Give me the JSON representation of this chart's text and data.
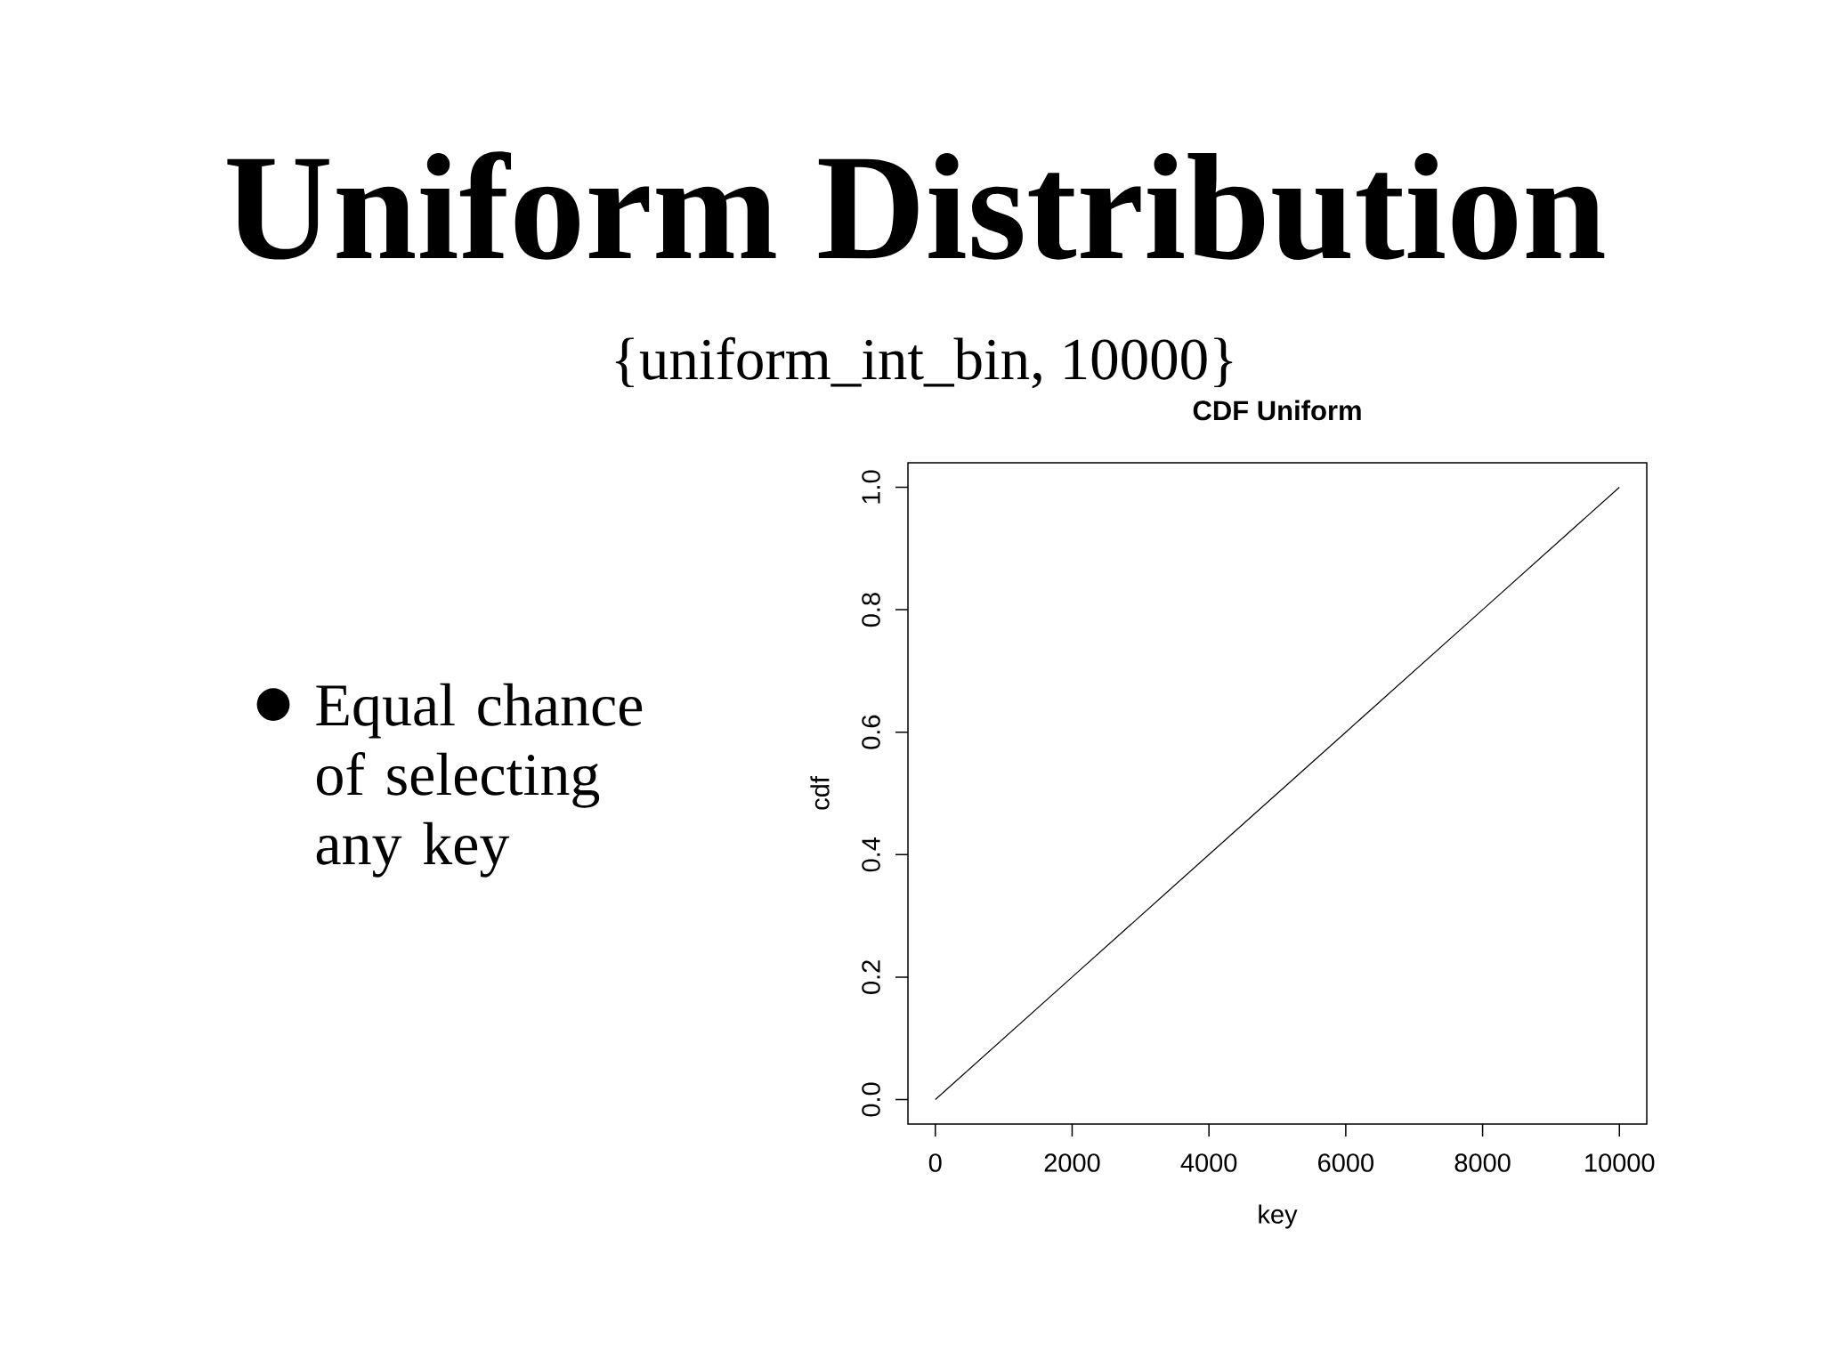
{
  "chart_data": {
    "type": "line",
    "title": "Uniform Distribution",
    "subtitle": "{uniform_int_bin, 10000}",
    "xlabel": "key",
    "ylabel": "cdf",
    "annotations": [
      "CDF Uniform",
      "Equal chance of selecting any key"
    ],
    "x": [
      0,
      2000,
      4000,
      6000,
      8000,
      10000
    ],
    "series": [
      {
        "color": "#000000",
        "values": [
          0,
          0.2,
          0.4,
          0.6,
          0.8,
          1
        ]
      }
    ],
    "xlim": [
      -400,
      10400
    ],
    "ylim": [
      -0.04,
      1.04
    ],
    "xticks": [
      0,
      2000,
      4000,
      6000,
      8000,
      10000
    ],
    "yticks": [
      {
        "value": 0,
        "label": "0.0"
      },
      0.2,
      0.4,
      0.6,
      0.8,
      {
        "value": 1,
        "label": "1.0"
      }
    ]
  }
}
